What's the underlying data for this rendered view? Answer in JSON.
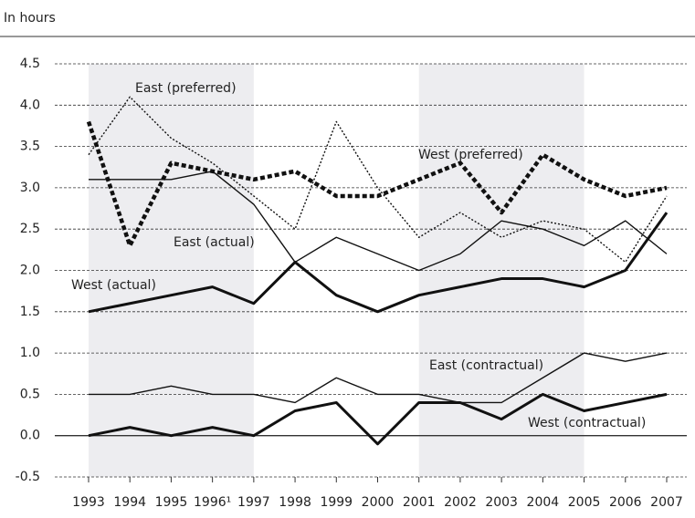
{
  "chart_data": {
    "type": "line",
    "ylabel": "In hours",
    "categories": [
      "1993",
      "1994",
      "1995",
      "1996¹",
      "1997",
      "1998",
      "1999",
      "2000",
      "2001",
      "2002",
      "2003",
      "2004",
      "2005",
      "2006",
      "2007"
    ],
    "series": [
      {
        "name": "East (preferred)",
        "color": "#111111",
        "line_width": "thin",
        "dash": "dotted",
        "values": [
          3.4,
          4.1,
          3.6,
          3.3,
          2.9,
          2.5,
          3.8,
          3.0,
          2.4,
          2.7,
          2.4,
          2.6,
          2.5,
          2.1,
          2.9
        ]
      },
      {
        "name": "West (preferred)",
        "color": "#111111",
        "line_width": "thick",
        "dash": "dotted",
        "values": [
          3.8,
          2.3,
          3.3,
          3.2,
          3.1,
          3.2,
          2.9,
          2.9,
          3.1,
          3.3,
          2.7,
          3.4,
          3.1,
          2.9,
          3.0
        ]
      },
      {
        "name": "East (actual)",
        "color": "#111111",
        "line_width": "thin",
        "dash": "solid",
        "values": [
          3.1,
          3.1,
          3.1,
          3.2,
          2.8,
          2.1,
          2.4,
          2.2,
          2.0,
          2.2,
          2.6,
          2.5,
          2.3,
          2.6,
          2.2
        ]
      },
      {
        "name": "West (actual)",
        "color": "#111111",
        "line_width": "thick",
        "dash": "solid",
        "values": [
          1.5,
          1.6,
          1.7,
          1.8,
          1.6,
          2.1,
          1.7,
          1.5,
          1.7,
          1.8,
          1.9,
          1.9,
          1.8,
          2.0,
          2.7
        ]
      },
      {
        "name": "East (contractual)",
        "color": "#111111",
        "line_width": "thin",
        "dash": "solid",
        "values": [
          0.5,
          0.5,
          0.6,
          0.5,
          0.5,
          0.4,
          0.7,
          0.5,
          0.5,
          0.4,
          0.4,
          0.7,
          1.0,
          0.9,
          1.0
        ]
      },
      {
        "name": "West (contractual)",
        "color": "#111111",
        "line_width": "thick",
        "dash": "solid",
        "values": [
          0.0,
          0.1,
          0.0,
          0.1,
          0.0,
          0.3,
          0.4,
          -0.1,
          0.4,
          0.4,
          0.2,
          0.5,
          0.3,
          0.4,
          0.5
        ]
      }
    ],
    "ylim": [
      -0.5,
      4.5
    ],
    "yticks": [
      {
        "value": -0.5,
        "label": "-0.5"
      },
      {
        "value": 0,
        "label": "0.0"
      },
      {
        "value": 0.5,
        "label": "0.5"
      },
      {
        "value": 1,
        "label": "1.0"
      },
      {
        "value": 1.5,
        "label": "1.5"
      },
      {
        "value": 2,
        "label": "2.0"
      },
      {
        "value": 2.5,
        "label": "2.5"
      },
      {
        "value": 3,
        "label": "3.0"
      },
      {
        "value": 3.5,
        "label": "3.5"
      },
      {
        "value": 4,
        "label": "4.0"
      },
      {
        "value": 4.5,
        "label": "4.5"
      }
    ],
    "grid": true
  }
}
